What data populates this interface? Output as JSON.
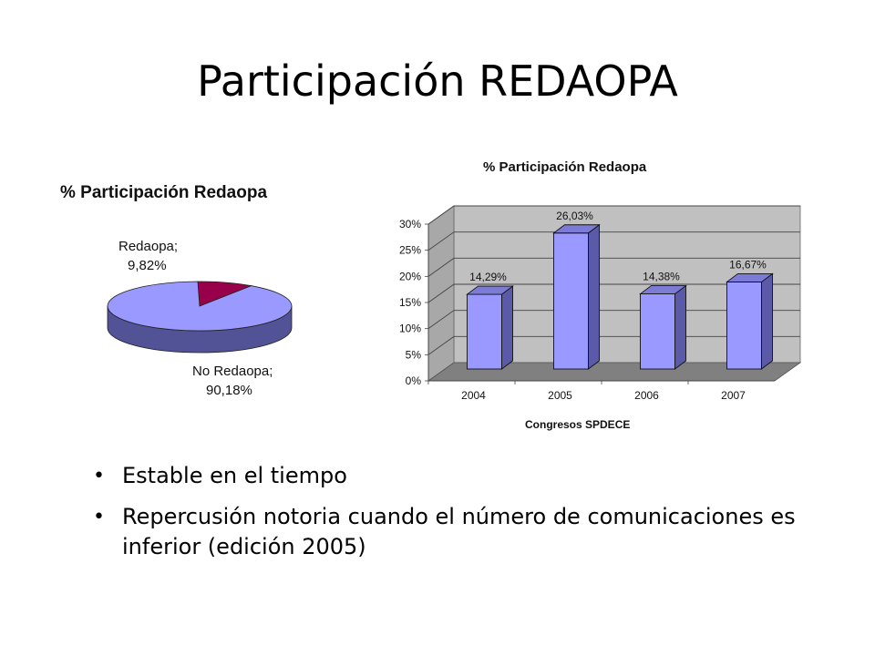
{
  "slide": {
    "title": "Participación REDAOPA",
    "bullets": [
      "Estable en el tiempo",
      "Repercusión notoria cuando el número de comunicaciones es inferior (edición 2005)"
    ]
  },
  "chart_data": [
    {
      "type": "pie",
      "title": "% Participación Redaopa",
      "slices": [
        {
          "label": "Redaopa;",
          "value_label": "9,82%",
          "value": 9.82,
          "color": "#99004c"
        },
        {
          "label": "No Redaopa;",
          "value_label": "90,18%",
          "value": 90.18,
          "color": "#9999ff"
        }
      ]
    },
    {
      "type": "bar",
      "title": "% Participación Redaopa",
      "xlabel": "Congresos SPDECE",
      "ylabel": "",
      "categories": [
        "2004",
        "2005",
        "2006",
        "2007"
      ],
      "values": [
        14.29,
        26.03,
        14.38,
        16.67
      ],
      "value_labels": [
        "14,29%",
        "26,03%",
        "14,38%",
        "16,67%"
      ],
      "yticks": [
        "0%",
        "5%",
        "10%",
        "15%",
        "20%",
        "25%",
        "30%"
      ],
      "ylim": [
        0,
        30
      ],
      "grid": true,
      "bar_color": "#9999ff",
      "bar_side_color": "#5a5aa8",
      "wall_color": "#c0c0c0",
      "floor_color": "#808080"
    }
  ]
}
